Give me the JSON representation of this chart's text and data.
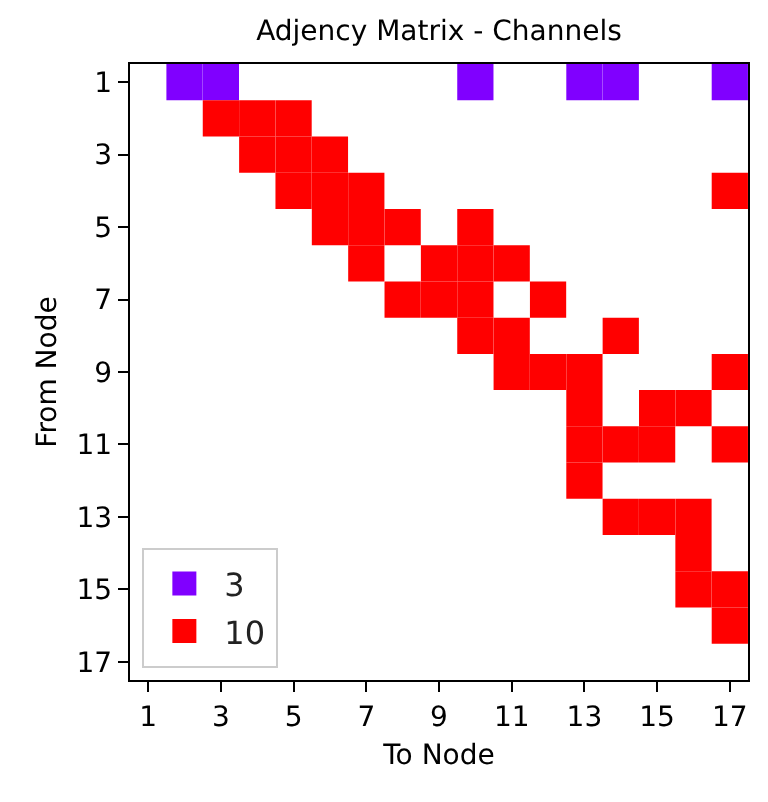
{
  "chart_data": {
    "type": "scatter",
    "title": "Adjency Matrix - Channels",
    "xlabel": "To Node",
    "ylabel": "From Node",
    "xlim": [
      0.5,
      17.5
    ],
    "xticks": [
      1,
      3,
      5,
      7,
      9,
      11,
      13,
      15,
      17
    ],
    "ylim": [
      17.5,
      0.5
    ],
    "yticks": [
      1,
      3,
      5,
      7,
      9,
      11,
      13,
      15,
      17
    ],
    "series": [
      {
        "name": "3",
        "color": "#8000ff",
        "x": [
          2,
          3,
          10,
          13,
          14,
          17
        ],
        "values": [
          1,
          1,
          1,
          1,
          1,
          1
        ]
      },
      {
        "name": "10",
        "color": "#ff0000",
        "x": [
          3,
          4,
          5,
          4,
          5,
          6,
          5,
          6,
          7,
          17,
          6,
          7,
          8,
          10,
          7,
          9,
          10,
          11,
          8,
          9,
          10,
          12,
          10,
          11,
          14,
          11,
          12,
          13,
          17,
          13,
          15,
          16,
          13,
          14,
          15,
          17,
          13,
          14,
          15,
          16,
          16,
          16,
          17,
          17
        ],
        "values": [
          2,
          2,
          2,
          3,
          3,
          3,
          4,
          4,
          4,
          4,
          5,
          5,
          5,
          5,
          6,
          6,
          6,
          6,
          7,
          7,
          7,
          7,
          8,
          8,
          8,
          9,
          9,
          9,
          9,
          10,
          10,
          10,
          11,
          11,
          11,
          11,
          12,
          13,
          13,
          13,
          14,
          15,
          15,
          16
        ]
      }
    ],
    "marker": "square",
    "legend": "bottom left"
  }
}
